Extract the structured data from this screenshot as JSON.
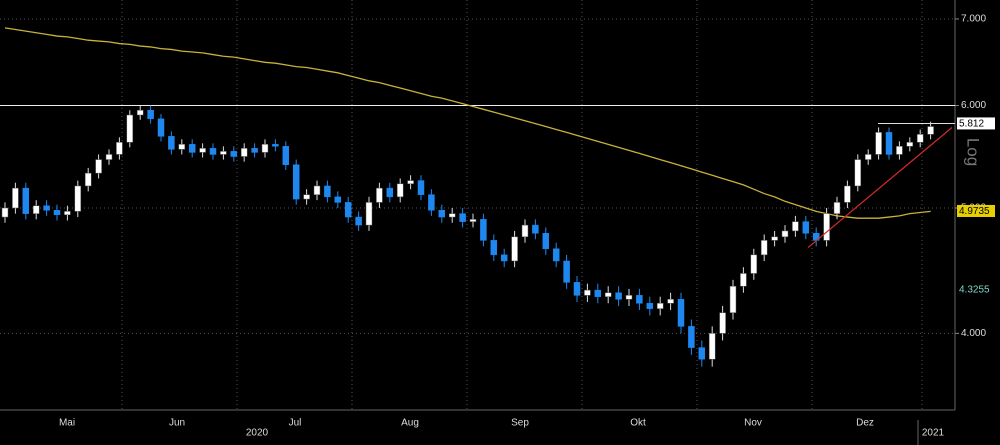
{
  "chart_data": {
    "type": "candlestick",
    "log_scale": true,
    "ylim": [
      3.49,
      7.24
    ],
    "yticks": [
      {
        "value": 7,
        "label": "7.000"
      },
      {
        "value": 6,
        "label": "6.000"
      },
      {
        "value": 5,
        "label": "5.000"
      },
      {
        "value": 4,
        "label": "4.000"
      }
    ],
    "scale_label": "Log",
    "months": [
      "Mai",
      "Jun",
      "Jul",
      "Aug",
      "Sep",
      "Okt",
      "Nov",
      "Dez"
    ],
    "years": [
      "2020",
      "2021"
    ],
    "up_color": "#ffffff",
    "down_color": "#1e88f0",
    "open": [
      4.92,
      5.0,
      5.18,
      4.95,
      5.02,
      4.98,
      4.94,
      4.97,
      5.2,
      5.32,
      5.45,
      5.5,
      5.62,
      5.9,
      5.95,
      5.86,
      5.68,
      5.55,
      5.6,
      5.52,
      5.56,
      5.5,
      5.53,
      5.48,
      5.56,
      5.52,
      5.6,
      5.58,
      5.4,
      5.08,
      5.12,
      5.2,
      5.1,
      5.05,
      4.92,
      4.85,
      5.05,
      5.18,
      5.1,
      5.22,
      5.25,
      5.12,
      4.98,
      4.92,
      4.95,
      4.88,
      4.9,
      4.72,
      4.6,
      4.55,
      4.75,
      4.85,
      4.78,
      4.65,
      4.55,
      4.38,
      4.28,
      4.32,
      4.27,
      4.3,
      4.25,
      4.28,
      4.22,
      4.18,
      4.22,
      4.25,
      4.05,
      3.9,
      3.82,
      4.0,
      4.15,
      4.35,
      4.45,
      4.6,
      4.72,
      4.75,
      4.8,
      4.88,
      4.78,
      4.72,
      4.95,
      5.05,
      5.2,
      5.45,
      5.5,
      5.72,
      5.5,
      5.58,
      5.62,
      5.7
    ],
    "high": [
      5.05,
      5.23,
      5.23,
      5.07,
      5.07,
      5.03,
      5.02,
      5.25,
      5.37,
      5.5,
      5.55,
      5.67,
      5.95,
      6.0,
      6.0,
      5.91,
      5.73,
      5.65,
      5.65,
      5.61,
      5.61,
      5.58,
      5.58,
      5.61,
      5.61,
      5.65,
      5.65,
      5.63,
      5.45,
      5.17,
      5.25,
      5.25,
      5.15,
      5.1,
      4.97,
      5.1,
      5.23,
      5.23,
      5.27,
      5.3,
      5.3,
      5.17,
      5.03,
      5.0,
      5.0,
      4.95,
      4.95,
      4.77,
      4.65,
      4.8,
      4.9,
      4.9,
      4.83,
      4.7,
      4.6,
      4.43,
      4.37,
      4.37,
      4.35,
      4.35,
      4.33,
      4.33,
      4.27,
      4.27,
      4.3,
      4.3,
      4.1,
      3.95,
      4.05,
      4.2,
      4.4,
      4.5,
      4.65,
      4.77,
      4.8,
      4.85,
      4.93,
      4.93,
      4.83,
      5.0,
      5.1,
      5.25,
      5.5,
      5.55,
      5.77,
      5.77,
      5.63,
      5.67,
      5.75,
      5.83
    ],
    "low": [
      4.87,
      4.95,
      4.9,
      4.9,
      4.93,
      4.89,
      4.89,
      4.92,
      5.15,
      5.27,
      5.4,
      5.45,
      5.57,
      5.85,
      5.81,
      5.63,
      5.5,
      5.5,
      5.47,
      5.47,
      5.45,
      5.45,
      5.43,
      5.43,
      5.47,
      5.47,
      5.53,
      5.35,
      5.03,
      5.03,
      5.07,
      5.05,
      5.0,
      4.87,
      4.8,
      4.8,
      5.0,
      5.05,
      5.05,
      5.17,
      5.07,
      4.93,
      4.87,
      4.87,
      4.83,
      4.83,
      4.67,
      4.55,
      4.5,
      4.5,
      4.7,
      4.73,
      4.6,
      4.5,
      4.33,
      4.23,
      4.23,
      4.22,
      4.22,
      4.2,
      4.2,
      4.17,
      4.13,
      4.13,
      4.17,
      4.0,
      3.85,
      3.77,
      3.77,
      3.95,
      4.1,
      4.3,
      4.4,
      4.55,
      4.67,
      4.7,
      4.75,
      4.73,
      4.67,
      4.67,
      4.9,
      5.0,
      5.15,
      5.4,
      5.45,
      5.45,
      5.45,
      5.53,
      5.57,
      5.65
    ],
    "close": [
      5.0,
      5.18,
      4.95,
      5.02,
      4.98,
      4.94,
      4.97,
      5.2,
      5.32,
      5.45,
      5.5,
      5.62,
      5.9,
      5.95,
      5.86,
      5.68,
      5.55,
      5.6,
      5.52,
      5.56,
      5.5,
      5.53,
      5.48,
      5.56,
      5.52,
      5.6,
      5.58,
      5.4,
      5.08,
      5.12,
      5.2,
      5.1,
      5.05,
      4.92,
      4.85,
      5.05,
      5.18,
      5.1,
      5.22,
      5.25,
      5.12,
      4.98,
      4.92,
      4.95,
      4.88,
      4.9,
      4.72,
      4.6,
      4.55,
      4.75,
      4.85,
      4.78,
      4.65,
      4.55,
      4.38,
      4.28,
      4.32,
      4.27,
      4.3,
      4.25,
      4.28,
      4.22,
      4.18,
      4.22,
      4.25,
      4.05,
      3.9,
      3.82,
      4.0,
      4.15,
      4.35,
      4.45,
      4.6,
      4.72,
      4.75,
      4.8,
      4.88,
      4.78,
      4.72,
      4.95,
      5.05,
      5.2,
      5.45,
      5.5,
      5.72,
      5.5,
      5.58,
      5.62,
      5.7,
      5.78
    ],
    "moving_average": {
      "color": "#c8b23a",
      "values": [
        6.89,
        6.87,
        6.85,
        6.83,
        6.81,
        6.79,
        6.78,
        6.76,
        6.74,
        6.73,
        6.72,
        6.7,
        6.69,
        6.67,
        6.66,
        6.64,
        6.63,
        6.61,
        6.6,
        6.59,
        6.57,
        6.55,
        6.54,
        6.52,
        6.5,
        6.48,
        6.47,
        6.45,
        6.43,
        6.42,
        6.4,
        6.38,
        6.36,
        6.33,
        6.3,
        6.27,
        6.25,
        6.22,
        6.19,
        6.16,
        6.13,
        6.1,
        6.08,
        6.05,
        6.02,
        5.99,
        5.96,
        5.93,
        5.9,
        5.87,
        5.84,
        5.81,
        5.78,
        5.75,
        5.72,
        5.69,
        5.66,
        5.63,
        5.6,
        5.57,
        5.54,
        5.51,
        5.48,
        5.45,
        5.42,
        5.39,
        5.36,
        5.33,
        5.3,
        5.27,
        5.24,
        5.21,
        5.17,
        5.13,
        5.1,
        5.06,
        5.03,
        5.0,
        4.97,
        4.95,
        4.93,
        4.92,
        4.91,
        4.91,
        4.91,
        4.92,
        4.93,
        4.95,
        4.96,
        4.97
      ]
    },
    "trendline": {
      "color": "#d42a2a",
      "values": [
        4.66,
        5.77
      ]
    },
    "resistance": 6,
    "price_tags": [
      {
        "value": 5.812,
        "label": "5.812",
        "background": "#ffffff",
        "text_color": "#000000"
      },
      {
        "value": 4.9735,
        "label": "4.9735",
        "background": "#e8d000",
        "text_color": "#000000"
      },
      {
        "value": 4.3255,
        "label": "4.3255",
        "background": "#000000",
        "text_color": "#7fd6c6"
      }
    ]
  }
}
